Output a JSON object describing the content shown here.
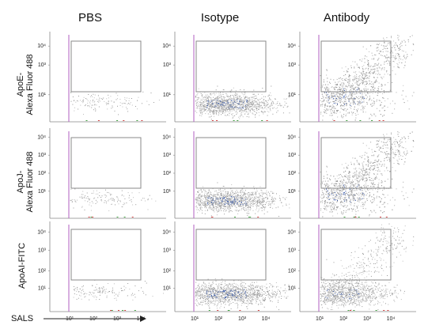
{
  "columns": [
    "PBS",
    "Isotype",
    "Antibody"
  ],
  "rows": [
    {
      "label_line1": "ApoE-",
      "label_line2": "Alexa Fluor 488"
    },
    {
      "label_line1": "ApoJ-",
      "label_line2": "Alexa Fluor 488"
    },
    {
      "label_line1": "ApoAI-FITC",
      "label_line2": ""
    }
  ],
  "x_axis_label": "SALS",
  "colors": {
    "axis": "#888888",
    "gate": "#8a8a8a",
    "left_line": "#b05fc0",
    "dots": "#9a9a9a",
    "dense": "#3a5aa8"
  },
  "chart_data": {
    "type": "scatter",
    "title": "",
    "xlabel": "SALS",
    "x_scale": "log",
    "y_scale": "log",
    "x_ticks": [
      "10¹",
      "10²",
      "10³",
      "10⁴"
    ],
    "y_ticks": [
      "10¹",
      "10²",
      "10³",
      "10⁴"
    ],
    "y_tick_rows": [
      [
        "10¹",
        "10³",
        "10⁴"
      ],
      [
        "10¹",
        "10²",
        "10³",
        "10⁴"
      ],
      [
        "10¹",
        "10²",
        "10³",
        "10⁴"
      ]
    ],
    "panels": [
      {
        "row": 0,
        "col": 0,
        "events": "sparse",
        "gate": "upper-right"
      },
      {
        "row": 0,
        "col": 1,
        "events": "dense-low",
        "gate": "upper-right"
      },
      {
        "row": 0,
        "col": 2,
        "events": "dense-spread",
        "gate": "upper-right"
      },
      {
        "row": 1,
        "col": 0,
        "events": "sparse",
        "gate": "upper-right"
      },
      {
        "row": 1,
        "col": 1,
        "events": "dense-low",
        "gate": "upper-right"
      },
      {
        "row": 1,
        "col": 2,
        "events": "dense-spread",
        "gate": "upper-right"
      },
      {
        "row": 2,
        "col": 0,
        "events": "sparse",
        "gate": "upper-right"
      },
      {
        "row": 2,
        "col": 1,
        "events": "dense-low",
        "gate": "upper-right"
      },
      {
        "row": 2,
        "col": 2,
        "events": "dense-moderate",
        "gate": "upper-right"
      }
    ]
  }
}
